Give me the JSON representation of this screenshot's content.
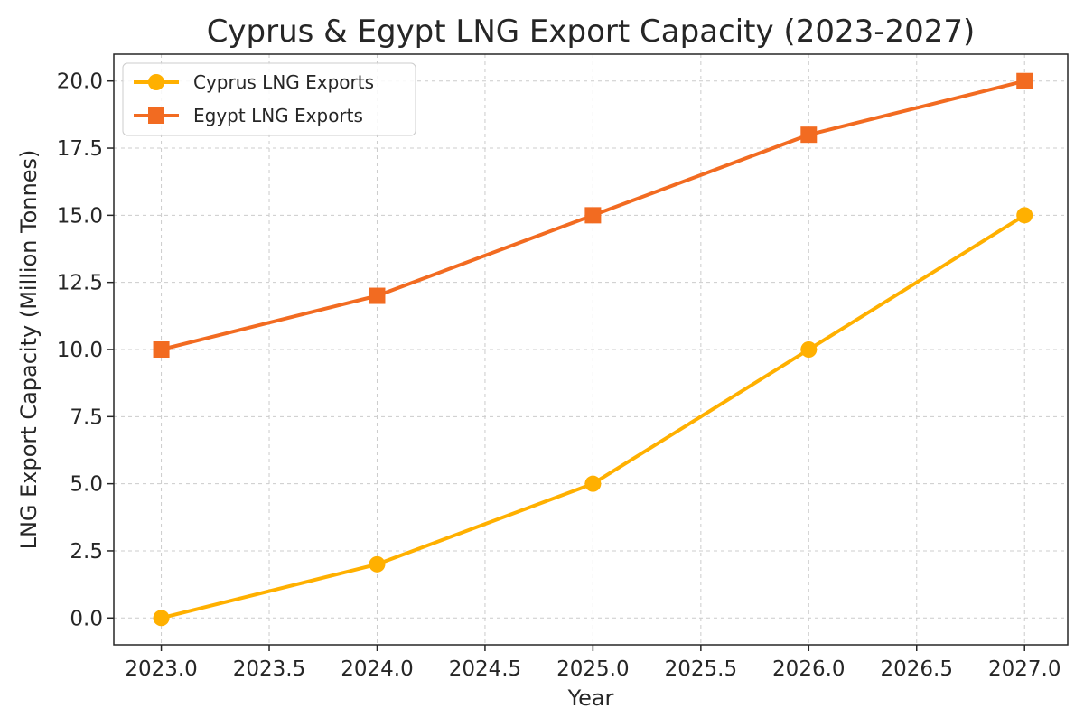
{
  "chart_data": {
    "type": "line",
    "title": "Cyprus & Egypt LNG Export Capacity (2023-2027)",
    "xlabel": "Year",
    "ylabel": "LNG Export Capacity (Million Tonnes)",
    "x": [
      2023,
      2024,
      2025,
      2026,
      2027
    ],
    "xlim": [
      2022.78,
      2027.2
    ],
    "ylim": [
      -1,
      21
    ],
    "xticks": [
      "2023.0",
      "2023.5",
      "2024.0",
      "2024.5",
      "2025.0",
      "2025.5",
      "2026.0",
      "2026.5",
      "2027.0"
    ],
    "xtick_values": [
      2023.0,
      2023.5,
      2024.0,
      2024.5,
      2025.0,
      2025.5,
      2026.0,
      2026.5,
      2027.0
    ],
    "yticks": [
      "0.0",
      "2.5",
      "5.0",
      "7.5",
      "10.0",
      "12.5",
      "15.0",
      "17.5",
      "20.0"
    ],
    "ytick_values": [
      0,
      2.5,
      5,
      7.5,
      10,
      12.5,
      15,
      17.5,
      20
    ],
    "grid": true,
    "legend_position": "top-left",
    "series": [
      {
        "name": "Cyprus LNG Exports",
        "values": [
          0,
          2,
          5,
          10,
          15
        ],
        "color": "#FFB000",
        "marker": "circle"
      },
      {
        "name": "Egypt LNG Exports",
        "values": [
          10,
          12,
          15,
          18,
          20
        ],
        "color": "#F26B21",
        "marker": "square"
      }
    ]
  }
}
